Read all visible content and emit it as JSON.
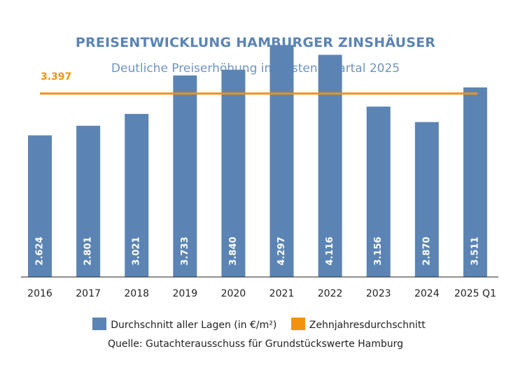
{
  "colors": {
    "bar": "#5b84b5",
    "average_line": "#f0940f",
    "bar_label": "#ffffff",
    "axis": "#222222"
  },
  "chart_data": {
    "type": "bar",
    "title": "PREISENTWICKLUNG HAMBURGER ZINSHÄUSER",
    "subtitle": "Deutliche Preiserhöhung im ersten Quartal 2025",
    "categories": [
      "2016",
      "2017",
      "2018",
      "2019",
      "2020",
      "2021",
      "2022",
      "2023",
      "2024",
      "2025 Q1"
    ],
    "series": [
      {
        "name": "Durchschnitt aller Lagen (in €/m²)",
        "values": [
          2624,
          2801,
          3021,
          3733,
          3840,
          4297,
          4116,
          3156,
          2870,
          3511
        ],
        "labels": [
          "2.624",
          "2.801",
          "3.021",
          "3.733",
          "3.840",
          "4.297",
          "4.116",
          "3.156",
          "2.870",
          "3.511"
        ]
      }
    ],
    "reference_line": {
      "name": "Zehnjahresdurchschnitt",
      "value": 3397,
      "label": "3.397"
    },
    "ylim": [
      0,
      4600
    ],
    "grid": false,
    "legend_position": "bottom",
    "source": "Quelle: Gutachterausschuss für Grundstückswerte Hamburg"
  }
}
